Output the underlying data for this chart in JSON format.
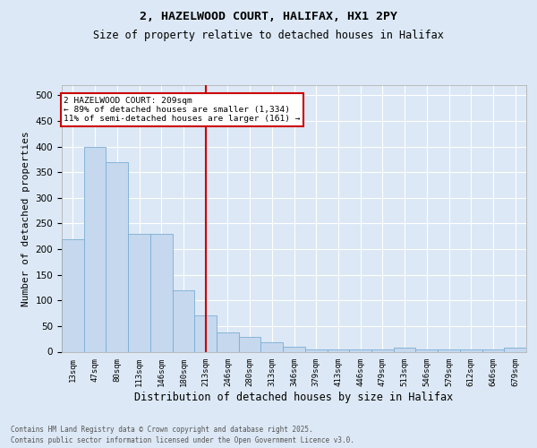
{
  "title1": "2, HAZELWOOD COURT, HALIFAX, HX1 2PY",
  "title2": "Size of property relative to detached houses in Halifax",
  "xlabel": "Distribution of detached houses by size in Halifax",
  "ylabel": "Number of detached properties",
  "categories": [
    "13sqm",
    "47sqm",
    "80sqm",
    "113sqm",
    "146sqm",
    "180sqm",
    "213sqm",
    "246sqm",
    "280sqm",
    "313sqm",
    "346sqm",
    "379sqm",
    "413sqm",
    "446sqm",
    "479sqm",
    "513sqm",
    "546sqm",
    "579sqm",
    "612sqm",
    "646sqm",
    "679sqm"
  ],
  "values": [
    220,
    400,
    370,
    230,
    230,
    120,
    70,
    38,
    28,
    18,
    10,
    5,
    5,
    5,
    5,
    8,
    5,
    5,
    5,
    5,
    8
  ],
  "bar_color": "#c5d8ee",
  "bar_edge_color": "#7aadd4",
  "bg_color": "#dce8f5",
  "grid_color": "#ffffff",
  "vline_color": "#cc0000",
  "vline_index": 6,
  "annotation_text": "2 HAZELWOOD COURT: 209sqm\n← 89% of detached houses are smaller (1,334)\n11% of semi-detached houses are larger (161) →",
  "annotation_box_ec": "#cc0000",
  "footer1": "Contains HM Land Registry data © Crown copyright and database right 2025.",
  "footer2": "Contains public sector information licensed under the Open Government Licence v3.0.",
  "ylim": [
    0,
    520
  ],
  "yticks": [
    0,
    50,
    100,
    150,
    200,
    250,
    300,
    350,
    400,
    450,
    500
  ]
}
